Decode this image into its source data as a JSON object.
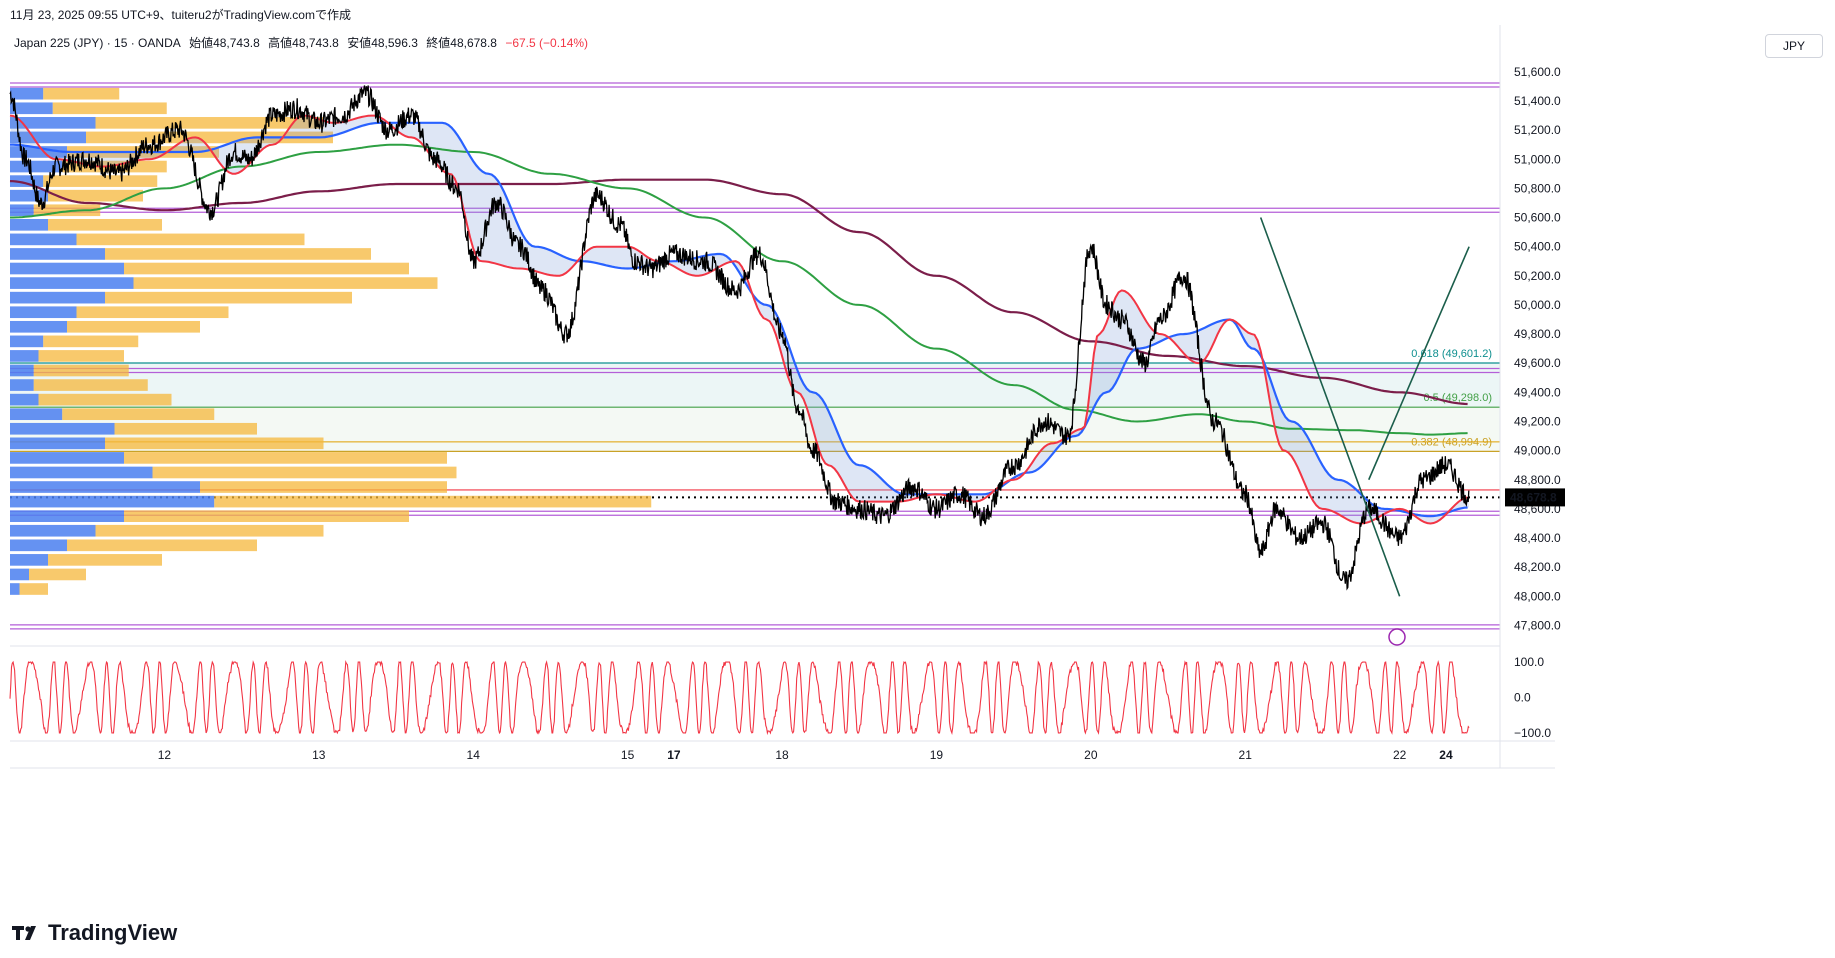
{
  "header": {
    "caption": "11月 23, 2025 09:55 UTC+9、tuiteru2がTradingView.comで作成",
    "symbol": "Japan 225 (JPY) · 15 · OANDA",
    "open": "始値48,743.8",
    "high": "高値48,743.8",
    "low": "安値48,596.3",
    "close": "終値48,678.8",
    "change": "−67.5 (−0.14%)"
  },
  "currency_button": "JPY",
  "logo_text": "TradingView",
  "colors": {
    "price": "#000000",
    "ema_fast": "#f23645",
    "ema_mid": "#2962ff",
    "ema_slow": "#2ea043",
    "ema_long": "#7b1e4a",
    "vp_up": "#4a7ff0",
    "vp_down": "#f5b73b",
    "horizontal": "#b45fd8",
    "fib_0618": "#0e8f8f",
    "fib_05": "#43a047",
    "fib_0382": "#c9a227",
    "oscillator": "#f23645",
    "trendline": "#1b5e4b"
  },
  "chart_data": {
    "type": "line",
    "ylim": [
      47700,
      51750
    ],
    "y_ticks": [
      "51,600.0",
      "51,400.0",
      "51,200.0",
      "51,000.0",
      "50,800.0",
      "50,600.0",
      "50,400.0",
      "50,200.0",
      "50,000.0",
      "49,800.0",
      "49,600.0",
      "49,400.0",
      "49,200.0",
      "49,000.0",
      "48,800.0",
      "48,600.0",
      "48,400.0",
      "48,200.0",
      "48,000.0",
      "47,800.0"
    ],
    "y_tick_values": [
      51600,
      51400,
      51200,
      51000,
      50800,
      50600,
      50400,
      50200,
      50000,
      49800,
      49600,
      49400,
      49200,
      49000,
      48800,
      48600,
      48400,
      48200,
      48000,
      47800
    ],
    "x_ticks": [
      "12",
      "13",
      "14",
      "15",
      "17",
      "18",
      "19",
      "20",
      "21",
      "22",
      "24"
    ],
    "x_tick_index": [
      12,
      13,
      14,
      15,
      15.3,
      16,
      17,
      18,
      19,
      20,
      20.3
    ],
    "last_price": "48,678.8",
    "last_price_value": 48678.8,
    "horizontal_levels": [
      51510,
      50650,
      49550,
      48570,
      47790
    ],
    "red_level": 48730,
    "fib_levels": [
      {
        "label": "0.618 (49,601.2)",
        "value": 49601.2
      },
      {
        "label": "0.5 (49,298.0)",
        "value": 49298.0
      },
      {
        "label": "0.382 (48,994.9)",
        "value": 48994.9
      }
    ],
    "fib_extra_line": 49060,
    "series": [
      {
        "name": "price",
        "x": [
          11.0,
          11.1,
          11.2,
          11.3,
          11.5,
          11.7,
          11.9,
          12.1,
          12.3,
          12.45,
          12.55,
          12.7,
          12.85,
          13.0,
          13.15,
          13.3,
          13.45,
          13.6,
          13.75,
          13.9,
          14.0,
          14.15,
          14.3,
          14.45,
          14.6,
          14.8,
          14.95,
          15.05,
          15.15,
          15.3,
          15.5,
          15.7,
          15.85,
          16.0,
          16.1,
          16.2,
          16.35,
          16.5,
          16.65,
          16.85,
          17.0,
          17.15,
          17.3,
          17.5,
          17.7,
          17.85,
          18.0,
          18.1,
          18.2,
          18.35,
          18.45,
          18.6,
          18.8,
          19.0,
          19.1,
          19.2,
          19.35,
          19.5,
          19.65,
          19.8,
          20.0,
          20.15,
          20.3,
          20.45
        ],
        "y": [
          51450,
          51000,
          50700,
          50950,
          51000,
          50900,
          51100,
          51200,
          50650,
          51050,
          51000,
          51300,
          51350,
          51250,
          51300,
          51450,
          51200,
          51300,
          51000,
          50800,
          50300,
          50700,
          50400,
          50100,
          49800,
          50750,
          50550,
          50300,
          50250,
          50350,
          50300,
          50100,
          50350,
          49800,
          49300,
          49000,
          48650,
          48600,
          48550,
          48750,
          48600,
          48700,
          48550,
          48900,
          49200,
          49100,
          50400,
          50000,
          49900,
          49600,
          49900,
          50200,
          49200,
          48700,
          48300,
          48600,
          48400,
          48500,
          48100,
          48600,
          48400,
          48800,
          48900,
          48680
        ]
      },
      {
        "name": "ema_fast",
        "x": [
          11.0,
          11.3,
          11.6,
          11.9,
          12.2,
          12.45,
          12.7,
          12.9,
          13.1,
          13.35,
          13.6,
          13.85,
          14.05,
          14.3,
          14.55,
          14.8,
          15.0,
          15.2,
          15.45,
          15.7,
          15.9,
          16.1,
          16.3,
          16.5,
          16.75,
          17.0,
          17.25,
          17.5,
          17.75,
          17.95,
          18.05,
          18.2,
          18.45,
          18.7,
          18.9,
          19.05,
          19.25,
          19.5,
          19.75,
          20.0,
          20.2,
          20.45
        ],
        "y": [
          51300,
          51000,
          50950,
          51000,
          51150,
          50900,
          51100,
          51300,
          51250,
          51300,
          51150,
          50900,
          50300,
          50250,
          50200,
          50400,
          50400,
          50300,
          50200,
          50300,
          49900,
          49400,
          48900,
          48650,
          48650,
          48700,
          48650,
          48800,
          49050,
          49150,
          49800,
          50100,
          49800,
          49600,
          49900,
          49800,
          49000,
          48600,
          48500,
          48600,
          48500,
          48680
        ]
      },
      {
        "name": "ema_mid",
        "x": [
          11.0,
          11.4,
          11.8,
          12.2,
          12.6,
          13.0,
          13.4,
          13.8,
          14.1,
          14.4,
          14.7,
          15.0,
          15.3,
          15.6,
          15.9,
          16.2,
          16.5,
          16.8,
          17.0,
          17.3,
          17.6,
          17.9,
          18.1,
          18.3,
          18.6,
          18.9,
          19.05,
          19.3,
          19.6,
          19.9,
          20.2,
          20.45
        ],
        "y": [
          51100,
          51050,
          51050,
          51050,
          51150,
          51150,
          51250,
          51250,
          50900,
          50400,
          50300,
          50250,
          50300,
          50350,
          50000,
          49400,
          48900,
          48700,
          48700,
          48700,
          48850,
          49100,
          49400,
          49700,
          49800,
          49900,
          49700,
          49200,
          48800,
          48600,
          48550,
          48610
        ]
      },
      {
        "name": "ema_slow",
        "x": [
          11.0,
          11.5,
          12.0,
          12.5,
          13.0,
          13.5,
          14.0,
          14.5,
          15.0,
          15.5,
          16.0,
          16.5,
          17.0,
          17.5,
          17.9,
          18.3,
          18.7,
          19.0,
          19.3,
          19.7,
          20.0,
          20.2,
          20.45
        ],
        "y": [
          50600,
          50650,
          50800,
          50950,
          51050,
          51100,
          51050,
          50900,
          50800,
          50600,
          50300,
          50000,
          49700,
          49450,
          49280,
          49200,
          49250,
          49200,
          49150,
          49140,
          49120,
          49110,
          49120
        ]
      },
      {
        "name": "ema_long",
        "x": [
          11.0,
          11.5,
          12.0,
          12.5,
          13.0,
          13.5,
          14.0,
          14.5,
          15.0,
          15.5,
          16.0,
          16.5,
          17.0,
          17.5,
          18.0,
          18.5,
          19.0,
          19.5,
          20.0,
          20.45
        ],
        "y": [
          50850,
          50700,
          50650,
          50700,
          50780,
          50830,
          50830,
          50830,
          50860,
          50860,
          50760,
          50500,
          50200,
          49950,
          49750,
          49650,
          49580,
          49500,
          49400,
          49320
        ]
      }
    ],
    "volume_profile": {
      "up": [
        [
          51450,
          35
        ],
        [
          51350,
          45
        ],
        [
          51250,
          90
        ],
        [
          51150,
          80
        ],
        [
          51050,
          60
        ],
        [
          50950,
          55
        ],
        [
          50850,
          35
        ],
        [
          50750,
          40
        ],
        [
          50650,
          25
        ],
        [
          50550,
          40
        ],
        [
          50450,
          70
        ],
        [
          50350,
          100
        ],
        [
          50250,
          120
        ],
        [
          50150,
          130
        ],
        [
          50050,
          100
        ],
        [
          49950,
          70
        ],
        [
          49850,
          60
        ],
        [
          49750,
          35
        ],
        [
          49650,
          30
        ],
        [
          49550,
          25
        ],
        [
          49450,
          25
        ],
        [
          49350,
          30
        ],
        [
          49250,
          55
        ],
        [
          49150,
          110
        ],
        [
          49050,
          100
        ],
        [
          48950,
          120
        ],
        [
          48850,
          150
        ],
        [
          48750,
          200
        ],
        [
          48650,
          215
        ],
        [
          48550,
          120
        ],
        [
          48450,
          90
        ],
        [
          48350,
          60
        ],
        [
          48250,
          40
        ],
        [
          48150,
          20
        ],
        [
          48050,
          10
        ]
      ],
      "down": [
        [
          51450,
          40
        ],
        [
          51350,
          60
        ],
        [
          51250,
          120
        ],
        [
          51150,
          130
        ],
        [
          51050,
          80
        ],
        [
          50950,
          55
        ],
        [
          50850,
          60
        ],
        [
          50750,
          50
        ],
        [
          50650,
          35
        ],
        [
          50550,
          60
        ],
        [
          50450,
          120
        ],
        [
          50350,
          140
        ],
        [
          50250,
          150
        ],
        [
          50150,
          160
        ],
        [
          50050,
          130
        ],
        [
          49950,
          80
        ],
        [
          49850,
          70
        ],
        [
          49750,
          50
        ],
        [
          49650,
          45
        ],
        [
          49550,
          50
        ],
        [
          49450,
          60
        ],
        [
          49350,
          70
        ],
        [
          49250,
          80
        ],
        [
          49150,
          75
        ],
        [
          49050,
          115
        ],
        [
          48950,
          170
        ],
        [
          48850,
          160
        ],
        [
          48750,
          130
        ],
        [
          48650,
          230
        ],
        [
          48550,
          150
        ],
        [
          48450,
          120
        ],
        [
          48350,
          100
        ],
        [
          48250,
          60
        ],
        [
          48150,
          30
        ],
        [
          48050,
          15
        ]
      ]
    },
    "oscillator": {
      "ylim": [
        -120,
        120
      ],
      "ticks": [
        "100.0",
        "0.0",
        "−100.0"
      ],
      "tick_values": [
        100,
        0,
        -100
      ],
      "cycles": 80
    },
    "trendlines": [
      {
        "x": [
          19.1,
          20.0
        ],
        "y": [
          50600,
          48000
        ]
      },
      {
        "x": [
          19.8,
          20.45
        ],
        "y": [
          48800,
          50400
        ]
      }
    ]
  }
}
